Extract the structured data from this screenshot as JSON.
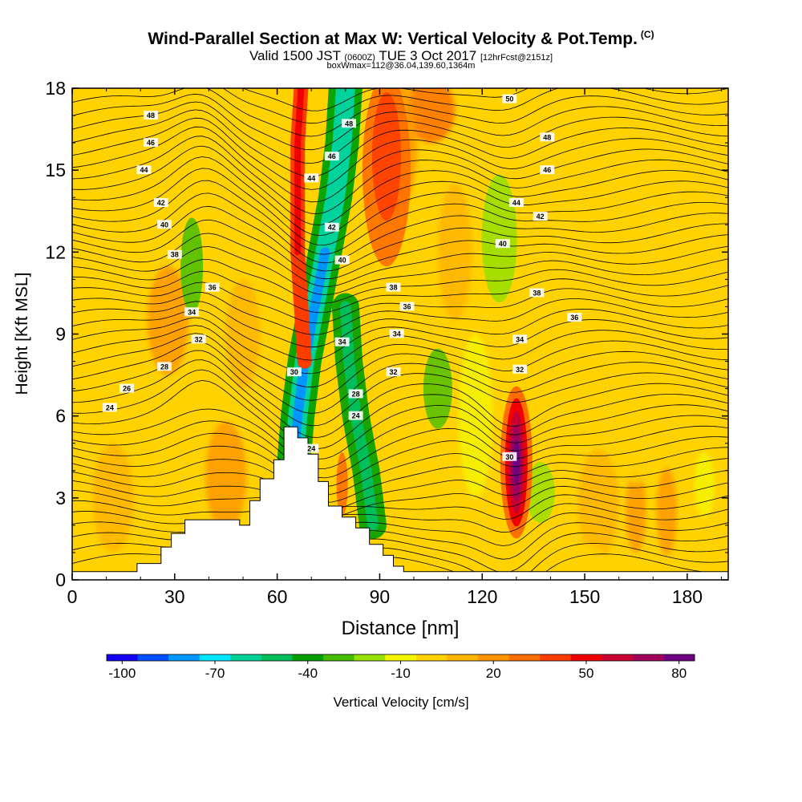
{
  "header": {
    "title": "Wind-Parallel Section at Max W: Vertical Velocity & Pot.Temp.",
    "copyright": "(C)",
    "valid_prefix": "Valid 1500 JST",
    "valid_utc": "(0600Z)",
    "valid_date": "TUE 3 Oct 2017",
    "forecast": "[12hrFcst@2151z]",
    "box_info": "boxWmax=112@36.04,139.60,1364m"
  },
  "colorbar": {
    "label": "Vertical Velocity [cm/s]",
    "tick_labels": [
      "-100",
      "-70",
      "-40",
      "-10",
      "20",
      "50",
      "80"
    ],
    "colors": [
      "#1400f5",
      "#0050ff",
      "#0096ff",
      "#00e6ff",
      "#00d29b",
      "#00be5a",
      "#00a000",
      "#46be00",
      "#96e100",
      "#f5f500",
      "#ffd200",
      "#ffb400",
      "#ff9600",
      "#ff6e00",
      "#ff3c00",
      "#f00000",
      "#c80032",
      "#a0005a",
      "#6e0082"
    ]
  },
  "chart_data": {
    "type": "heatmap",
    "title": "Wind-Parallel Section at Max W: Vertical Velocity & Pot.Temp.",
    "xlabel": "Distance [nm]",
    "ylabel": "Height [Kft MSL]",
    "xlim": [
      0,
      192
    ],
    "ylim": [
      0,
      18
    ],
    "xticks": [
      0,
      30,
      60,
      90,
      120,
      150,
      180
    ],
    "yticks": [
      0,
      3,
      6,
      9,
      12,
      15,
      18
    ],
    "fill_variable": "Vertical Velocity [cm/s]",
    "fill_range": [
      -100,
      90
    ],
    "contour_variable": "Potential Temperature",
    "contour_labels": [
      "24",
      "26",
      "28",
      "30",
      "32",
      "34",
      "36",
      "38",
      "40",
      "42",
      "44",
      "46",
      "48",
      "50"
    ],
    "max_w": {
      "value": 112,
      "lat": 36.04,
      "lon": 139.6,
      "height_m": 1364
    },
    "terrain_profile": [
      [
        0,
        0.3
      ],
      [
        19,
        0.3
      ],
      [
        19,
        0.6
      ],
      [
        26,
        0.6
      ],
      [
        26,
        1.2
      ],
      [
        29,
        1.2
      ],
      [
        29,
        1.7
      ],
      [
        33,
        1.7
      ],
      [
        33,
        2.2
      ],
      [
        49,
        2.2
      ],
      [
        49,
        2.0
      ],
      [
        52,
        2.0
      ],
      [
        52,
        2.9
      ],
      [
        55,
        2.9
      ],
      [
        55,
        3.7
      ],
      [
        59,
        3.7
      ],
      [
        59,
        4.4
      ],
      [
        62,
        4.4
      ],
      [
        62,
        5.6
      ],
      [
        66,
        5.6
      ],
      [
        66,
        5.2
      ],
      [
        69,
        5.2
      ],
      [
        69,
        4.6
      ],
      [
        72,
        4.6
      ],
      [
        72,
        3.6
      ],
      [
        75,
        3.6
      ],
      [
        75,
        2.7
      ],
      [
        79,
        2.7
      ],
      [
        79,
        2.3
      ],
      [
        83,
        2.3
      ],
      [
        83,
        1.9
      ],
      [
        87,
        1.9
      ],
      [
        87,
        1.3
      ],
      [
        91,
        1.3
      ],
      [
        91,
        0.9
      ],
      [
        94,
        0.9
      ],
      [
        94,
        0.5
      ],
      [
        97,
        0.5
      ],
      [
        97,
        0.3
      ],
      [
        192,
        0.3
      ]
    ],
    "features": [
      {
        "kind": "downdraft",
        "path": [
          [
            65,
            4.5
          ],
          [
            66,
            6
          ],
          [
            68,
            8
          ],
          [
            71,
            10
          ],
          [
            74,
            12
          ],
          [
            77,
            14
          ],
          [
            79,
            16
          ],
          [
            80,
            18
          ]
        ],
        "w": -75
      },
      {
        "kind": "downdraft",
        "path": [
          [
            88,
            2
          ],
          [
            86,
            4
          ],
          [
            83,
            6
          ],
          [
            81,
            8
          ],
          [
            80,
            10
          ]
        ],
        "w": -45
      },
      {
        "kind": "updraft",
        "path": [
          [
            68,
            8
          ],
          [
            67,
            10
          ],
          [
            66,
            12
          ],
          [
            66,
            14
          ],
          [
            66,
            16
          ],
          [
            67,
            18
          ]
        ],
        "w": 55
      },
      {
        "kind": "updraft",
        "center": [
          130,
          4.3
        ],
        "w": 88
      },
      {
        "kind": "updraft",
        "center": [
          92,
          15
        ],
        "w": 30
      },
      {
        "kind": "downdraft",
        "center": [
          125,
          12.5
        ],
        "w": -20
      }
    ]
  }
}
